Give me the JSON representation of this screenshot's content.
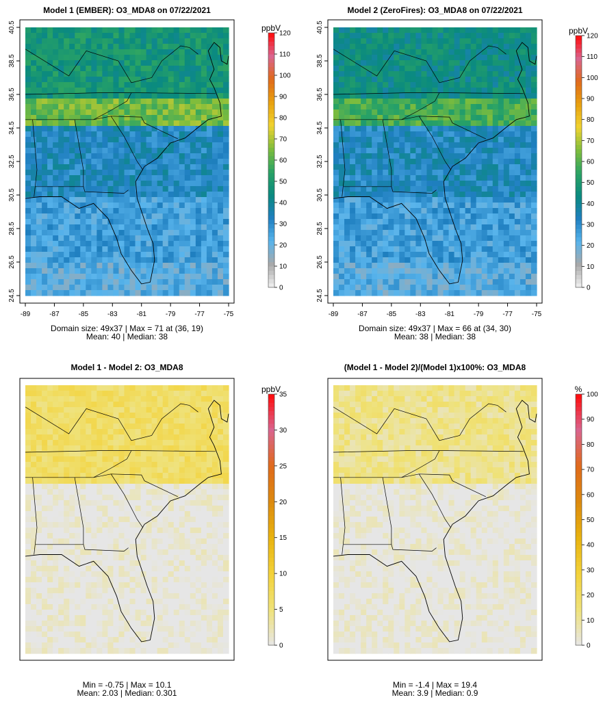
{
  "chart_data": [
    {
      "type": "heatmap",
      "title": "Model 1 (EMBER): O3_MDA8 on 07/22/2021",
      "xlabel": "",
      "ylabel": "",
      "xticks": [
        "-89",
        "-87",
        "-85",
        "-83",
        "-81",
        "-79",
        "-77",
        "-75"
      ],
      "yticks": [
        "24.5",
        "26.5",
        "28.5",
        "30.5",
        "32.5",
        "34.5",
        "36.5",
        "38.5",
        "40.5"
      ],
      "xlim": [
        -89,
        -75
      ],
      "ylim": [
        24.5,
        40.5
      ],
      "colorbar": {
        "unit": "ppbV",
        "ticks": [
          "0",
          "10",
          "20",
          "30",
          "40",
          "50",
          "60",
          "70",
          "80",
          "90",
          "100",
          "110",
          "120"
        ],
        "min": 0,
        "max": 120
      },
      "colors": [
        "#f2f2f2",
        "#a9a9a9",
        "#58b4ec",
        "#1f7fc0",
        "#0a8a7f",
        "#2aa365",
        "#7fbd3c",
        "#f0d330",
        "#e8a10f",
        "#e06a1b",
        "#d9658f",
        "#ff0a0a"
      ],
      "annotation_line1": "Domain size: 49x37 | Max = 71 at (36, 19)",
      "annotation_line2": "Mean: 40 |  Median: 38",
      "stats": {
        "grid": "49x37",
        "max": 71,
        "max_at": [
          36,
          19
        ],
        "mean": 40,
        "median": 38
      },
      "regions": [
        {
          "lat": [
            24.5,
            26.5
          ],
          "lon": [
            -89,
            -75
          ],
          "value": 22
        },
        {
          "lat": [
            26.5,
            30.5
          ],
          "lon": [
            -89,
            -75
          ],
          "value": 26
        },
        {
          "lat": [
            30.5,
            34.5
          ],
          "lon": [
            -89,
            -75
          ],
          "value": 33
        },
        {
          "lat": [
            34.5,
            36.2
          ],
          "lon": [
            -89,
            -75
          ],
          "value": 63
        },
        {
          "lat": [
            36.2,
            40.5
          ],
          "lon": [
            -89,
            -75
          ],
          "value": 48
        }
      ]
    },
    {
      "type": "heatmap",
      "title": "Model 2 (ZeroFires): O3_MDA8 on 07/22/2021",
      "xlabel": "",
      "ylabel": "",
      "xticks": [
        "-89",
        "-87",
        "-85",
        "-83",
        "-81",
        "-79",
        "-77",
        "-75"
      ],
      "yticks": [
        "24.5",
        "26.5",
        "28.5",
        "30.5",
        "32.5",
        "34.5",
        "36.5",
        "38.5",
        "40.5"
      ],
      "xlim": [
        -89,
        -75
      ],
      "ylim": [
        24.5,
        40.5
      ],
      "colorbar": {
        "unit": "ppbV",
        "ticks": [
          "0",
          "10",
          "20",
          "30",
          "40",
          "50",
          "60",
          "70",
          "80",
          "90",
          "100",
          "110",
          "120"
        ],
        "min": 0,
        "max": 120
      },
      "colors": [
        "#f2f2f2",
        "#a9a9a9",
        "#58b4ec",
        "#1f7fc0",
        "#0a8a7f",
        "#2aa365",
        "#7fbd3c",
        "#f0d330",
        "#e8a10f",
        "#e06a1b",
        "#d9658f",
        "#ff0a0a"
      ],
      "annotation_line1": "Domain size: 49x37 | Max = 66 at (34, 30)",
      "annotation_line2": "Mean: 38 |  Median: 38",
      "stats": {
        "grid": "49x37",
        "max": 66,
        "max_at": [
          34,
          30
        ],
        "mean": 38,
        "median": 38
      },
      "regions": [
        {
          "lat": [
            24.5,
            26.5
          ],
          "lon": [
            -89,
            -75
          ],
          "value": 22
        },
        {
          "lat": [
            26.5,
            30.5
          ],
          "lon": [
            -89,
            -75
          ],
          "value": 26
        },
        {
          "lat": [
            30.5,
            34.5
          ],
          "lon": [
            -89,
            -75
          ],
          "value": 33
        },
        {
          "lat": [
            34.5,
            36.2
          ],
          "lon": [
            -89,
            -75
          ],
          "value": 58
        },
        {
          "lat": [
            36.2,
            40.5
          ],
          "lon": [
            -89,
            -75
          ],
          "value": 44
        }
      ]
    },
    {
      "type": "heatmap",
      "title": "Model 1 - Model 2: O3_MDA8",
      "xlabel": "",
      "ylabel": "",
      "xticks": [],
      "yticks": [],
      "xlim": [
        -89,
        -75
      ],
      "ylim": [
        24.5,
        40.5
      ],
      "colorbar": {
        "unit": "ppbV",
        "ticks": [
          "0",
          "5",
          "10",
          "15",
          "20",
          "25",
          "30",
          "35"
        ],
        "min": 0,
        "max": 35
      },
      "colors": [
        "#e6e6e6",
        "#efe27a",
        "#f3d23a",
        "#e8b30f",
        "#dc8a0f",
        "#e06a1b",
        "#d9658f",
        "#ff0a0a"
      ],
      "annotation_line1": "Min = -0.75 | Max = 10.1",
      "annotation_line2": "Mean: 2.03 |  Median: 0.301",
      "stats": {
        "min": -0.75,
        "max": 10.1,
        "mean": 2.03,
        "median": 0.301
      },
      "regions": [
        {
          "lat": [
            24.5,
            34.5
          ],
          "lon": [
            -89,
            -75
          ],
          "value": 0.2
        },
        {
          "lat": [
            34.5,
            40.5
          ],
          "lon": [
            -89,
            -75
          ],
          "value": 6.5
        }
      ]
    },
    {
      "type": "heatmap",
      "title": "(Model 1 - Model 2)/(Model 1)x100%: O3_MDA8",
      "xlabel": "",
      "ylabel": "",
      "xticks": [],
      "yticks": [],
      "xlim": [
        -89,
        -75
      ],
      "ylim": [
        24.5,
        40.5
      ],
      "colorbar": {
        "unit": "%",
        "ticks": [
          "0",
          "10",
          "20",
          "30",
          "40",
          "50",
          "60",
          "70",
          "80",
          "90",
          "100"
        ],
        "min": 0,
        "max": 100
      },
      "colors": [
        "#e6e6e6",
        "#efe27a",
        "#f3d23a",
        "#e8b30f",
        "#dc8a0f",
        "#e06a1b",
        "#d9658f",
        "#ff0a0a"
      ],
      "annotation_line1": "Min = -1.4 | Max = 19.4",
      "annotation_line2": "Mean: 3.9 |  Median: 0.9",
      "stats": {
        "min": -1.4,
        "max": 19.4,
        "mean": 3.9,
        "median": 0.9
      },
      "regions": [
        {
          "lat": [
            24.5,
            34.5
          ],
          "lon": [
            -89,
            -75
          ],
          "value": 0.5
        },
        {
          "lat": [
            34.5,
            40.5
          ],
          "lon": [
            -89,
            -75
          ],
          "value": 12
        }
      ]
    }
  ]
}
